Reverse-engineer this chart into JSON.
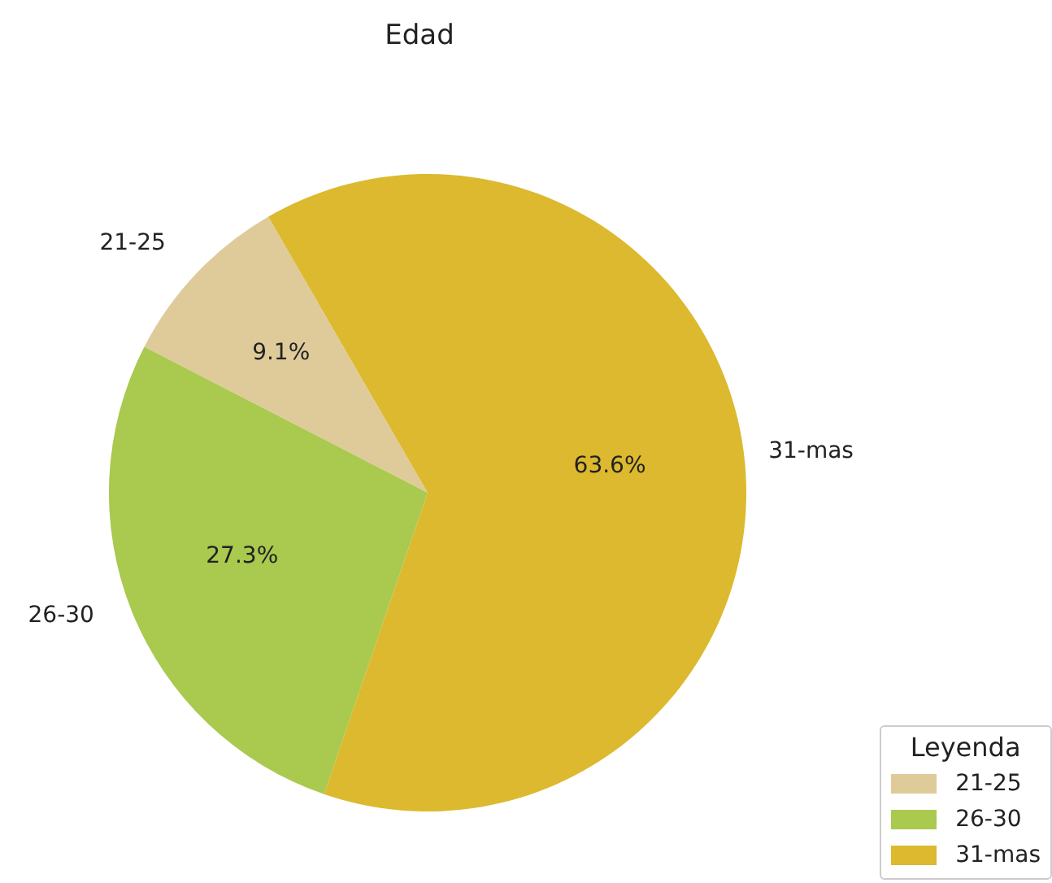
{
  "chart_data": {
    "type": "pie",
    "title": "Edad",
    "legend_title": "Leyenda",
    "legend": "bottom right",
    "categories": [
      "21-25",
      "26-30",
      "31-mas"
    ],
    "values": [
      9.1,
      27.3,
      63.6
    ],
    "value_labels": [
      "9.1%",
      "27.3%",
      "63.6%"
    ],
    "colors": [
      "#dfcb9a",
      "#a9c94f",
      "#dcb92e"
    ]
  }
}
